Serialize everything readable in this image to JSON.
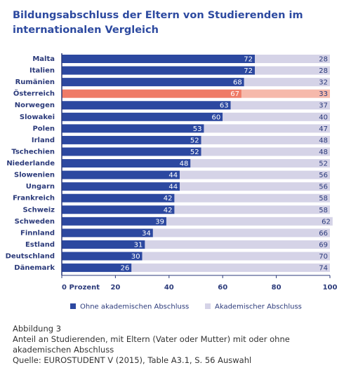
{
  "chart_data": {
    "type": "stacked_barh",
    "title": "Bildungsabschluss der Eltern von Studierenden im internationalen Vergleich",
    "categories": [
      "Malta",
      "Italien",
      "Rumänien",
      "Österreich",
      "Norwegen",
      "Slowakei",
      "Polen",
      "Irland",
      "Tschechien",
      "Niederlande",
      "Slowenien",
      "Ungarn",
      "Frankreich",
      "Schweiz",
      "Schweden",
      "Finnland",
      "Estland",
      "Deutschland",
      "Dänemark"
    ],
    "series": [
      {
        "name": "Ohne akademischen Abschluss",
        "color": "#2c48a0",
        "label_color": "#ffffff",
        "values": [
          72,
          72,
          68,
          67,
          63,
          60,
          53,
          52,
          52,
          48,
          44,
          44,
          42,
          42,
          39,
          34,
          31,
          30,
          26
        ]
      },
      {
        "name": "Akademischer Abschluss",
        "color": "#d5d3e7",
        "label_color": "#2b3a7a",
        "values": [
          28,
          28,
          32,
          33,
          37,
          40,
          47,
          48,
          48,
          52,
          56,
          56,
          58,
          58,
          62,
          66,
          69,
          70,
          74
        ]
      }
    ],
    "highlight": {
      "index": 3,
      "colors": [
        "#ef7b67",
        "#f6b9ab"
      ]
    },
    "xlim": [
      0,
      100
    ],
    "xticks": [
      {
        "value": 0,
        "label": "0 Prozent"
      },
      20,
      40,
      60,
      80,
      100
    ],
    "grid": false
  },
  "caption": {
    "figure": "Abbildung 3",
    "text": "Anteil an Studierenden, mit Eltern (Vater oder Mutter) mit oder ohne akademischen Abschluss",
    "source": "Quelle: EUROSTUDENT V (2015), Table A3.1, S. 56 Auswahl"
  }
}
